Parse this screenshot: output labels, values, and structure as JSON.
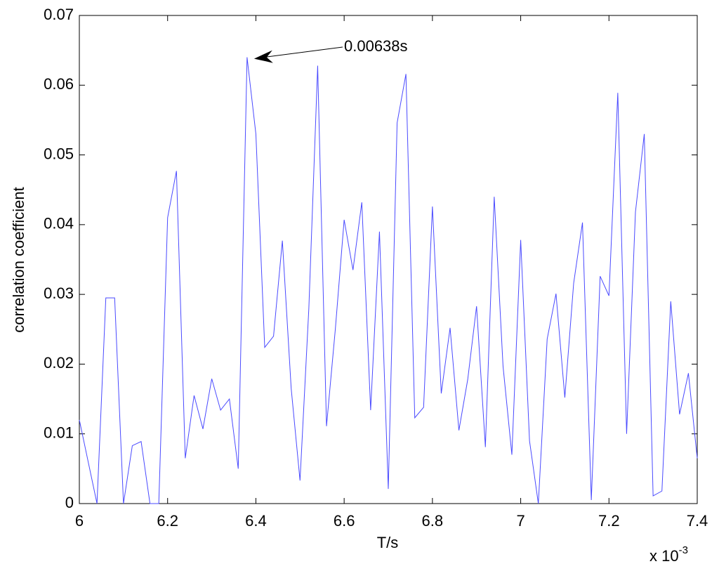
{
  "chart_data": {
    "type": "line",
    "x_label": "T/s",
    "y_label": "correlation coefficient",
    "x_exponent": {
      "base": "x 10",
      "power": "-3"
    },
    "x": [
      6.0,
      6.02,
      6.04,
      6.06,
      6.08,
      6.1,
      6.12,
      6.14,
      6.16,
      6.18,
      6.2,
      6.22,
      6.24,
      6.26,
      6.28,
      6.3,
      6.32,
      6.34,
      6.36,
      6.38,
      6.4,
      6.42,
      6.44,
      6.46,
      6.48,
      6.5,
      6.52,
      6.54,
      6.56,
      6.58,
      6.6,
      6.62,
      6.64,
      6.66,
      6.68,
      6.7,
      6.72,
      6.74,
      6.76,
      6.78,
      6.8,
      6.82,
      6.84,
      6.86,
      6.88,
      6.9,
      6.92,
      6.94,
      6.96,
      6.98,
      7.0,
      7.02,
      7.04,
      7.06,
      7.08,
      7.1,
      7.12,
      7.14,
      7.16,
      7.18,
      7.2,
      7.22,
      7.24,
      7.26,
      7.28,
      7.3,
      7.32,
      7.34,
      7.36,
      7.38,
      7.4
    ],
    "values": [
      0.012,
      0.006,
      0,
      0.0295,
      0.0295,
      0,
      0.0083,
      0.0089,
      0,
      0,
      0.041,
      0.0477,
      0.0065,
      0.0155,
      0.0107,
      0.0179,
      0.0134,
      0.015,
      0.005,
      0.064,
      0.053,
      0.0224,
      0.024,
      0.0377,
      0.0165,
      0.0033,
      0.028,
      0.0628,
      0.0111,
      0.025,
      0.0407,
      0.0335,
      0.0432,
      0.0134,
      0.039,
      0.0021,
      0.0546,
      0.0616,
      0.0123,
      0.0138,
      0.0426,
      0.0158,
      0.0252,
      0.0105,
      0.0178,
      0.0283,
      0.0081,
      0.044,
      0.0197,
      0.007,
      0.0378,
      0.009,
      0,
      0.0236,
      0.0301,
      0.0152,
      0.0316,
      0.0403,
      0.0005,
      0.0326,
      0.0298,
      0.0589,
      0.01,
      0.0418,
      0.053,
      0.0011,
      0.0018,
      0.029,
      0.0128,
      0.0187,
      0.0065
    ],
    "color": "#4a4aff",
    "xlim": [
      6,
      7.4
    ],
    "ylim": [
      0,
      0.07
    ],
    "xticks": [
      6,
      6.2,
      6.4,
      6.6,
      6.8,
      7,
      7.2,
      7.4
    ],
    "yticks": [
      0,
      0.01,
      0.02,
      0.03,
      0.04,
      0.05,
      0.06,
      0.07
    ],
    "annotation": {
      "text": "0.00638s",
      "x": 6.38,
      "y": 0.064
    }
  }
}
